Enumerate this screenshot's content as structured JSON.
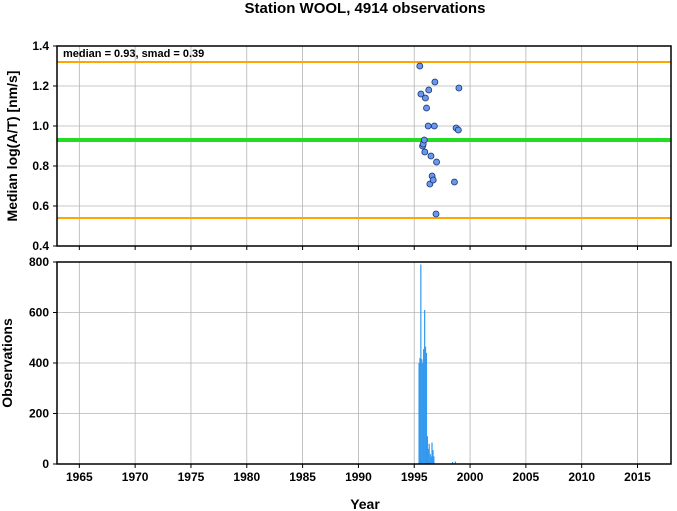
{
  "title": "Station WOOL, 4914 observations",
  "chart_data": [
    {
      "type": "scatter",
      "ylabel": "Median log(A/T) [nm/s]",
      "xlim": [
        1963,
        2018
      ],
      "ylim": [
        0.4,
        1.4
      ],
      "xticks": [
        1965,
        1970,
        1975,
        1980,
        1985,
        1990,
        1995,
        2000,
        2005,
        2010,
        2015
      ],
      "yticks": [
        0.4,
        0.6,
        0.8,
        1.0,
        1.2,
        1.4
      ],
      "ytick_labels": [
        "0.4",
        "0.6",
        "0.8",
        "1.0",
        "1.2",
        "1.4"
      ],
      "grid": true,
      "annotation": "median = 0.93, smad = 0.39",
      "median_line": {
        "value": 0.93,
        "color": "#22dd22"
      },
      "bound_lines": {
        "values": [
          0.54,
          1.32
        ],
        "color": "#ffa500"
      },
      "point_color": "#6699ee",
      "points": [
        {
          "x": 1995.5,
          "y": 1.3
        },
        {
          "x": 1995.6,
          "y": 1.16
        },
        {
          "x": 1995.75,
          "y": 0.9
        },
        {
          "x": 1995.8,
          "y": 0.91
        },
        {
          "x": 1995.95,
          "y": 0.87
        },
        {
          "x": 1995.9,
          "y": 0.93
        },
        {
          "x": 1996.0,
          "y": 1.14
        },
        {
          "x": 1996.1,
          "y": 1.09
        },
        {
          "x": 1996.25,
          "y": 1.0
        },
        {
          "x": 1996.3,
          "y": 1.18
        },
        {
          "x": 1996.4,
          "y": 0.71
        },
        {
          "x": 1996.5,
          "y": 0.85
        },
        {
          "x": 1996.6,
          "y": 0.75
        },
        {
          "x": 1996.7,
          "y": 0.73
        },
        {
          "x": 1996.8,
          "y": 1.0
        },
        {
          "x": 1996.85,
          "y": 1.22
        },
        {
          "x": 1997.0,
          "y": 0.82
        },
        {
          "x": 1996.95,
          "y": 0.56
        },
        {
          "x": 1998.6,
          "y": 0.72
        },
        {
          "x": 1998.75,
          "y": 0.99
        },
        {
          "x": 1998.95,
          "y": 0.98
        },
        {
          "x": 1999.0,
          "y": 1.19
        }
      ]
    },
    {
      "type": "bar",
      "xlabel": "Year",
      "ylabel": "Observations",
      "xlim": [
        1963,
        2018
      ],
      "ylim": [
        0,
        800
      ],
      "xticks": [
        1965,
        1970,
        1975,
        1980,
        1985,
        1990,
        1995,
        2000,
        2005,
        2010,
        2015
      ],
      "yticks": [
        0,
        200,
        400,
        600,
        800
      ],
      "grid": true,
      "bar_color": "#3399ee",
      "bin_width": 0.0833,
      "bars": [
        {
          "x": 1995.42,
          "y": 400
        },
        {
          "x": 1995.5,
          "y": 420
        },
        {
          "x": 1995.58,
          "y": 790
        },
        {
          "x": 1995.67,
          "y": 415
        },
        {
          "x": 1995.75,
          "y": 400
        },
        {
          "x": 1995.83,
          "y": 455
        },
        {
          "x": 1995.92,
          "y": 610
        },
        {
          "x": 1996.0,
          "y": 465
        },
        {
          "x": 1996.08,
          "y": 440
        },
        {
          "x": 1996.17,
          "y": 110
        },
        {
          "x": 1996.25,
          "y": 60
        },
        {
          "x": 1996.33,
          "y": 80
        },
        {
          "x": 1996.42,
          "y": 40
        },
        {
          "x": 1996.5,
          "y": 30
        },
        {
          "x": 1996.58,
          "y": 85
        },
        {
          "x": 1996.67,
          "y": 55
        },
        {
          "x": 1996.75,
          "y": 30
        },
        {
          "x": 1998.42,
          "y": 8
        },
        {
          "x": 1998.67,
          "y": 10
        }
      ]
    }
  ]
}
